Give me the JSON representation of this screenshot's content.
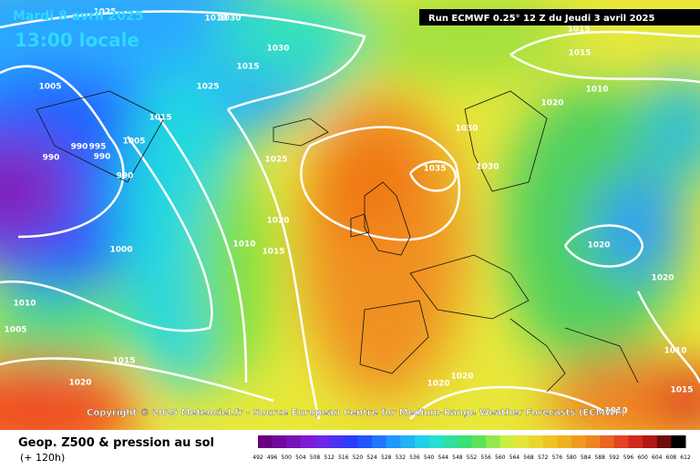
{
  "header": {
    "date": "Mardi 8 avril 2025",
    "time": "13:00 locale",
    "run": "Run ECMWF 0.25° 12 Z du Jeudi 3 avril 2025"
  },
  "copyright": "Copyright © 2025 Meteociel.fr - Source European Centre for Medium-Range Weather Forecasts (ECMWF)",
  "legend": {
    "title": "Geop. Z500 & pression au sol",
    "lead": "(+ 120h)",
    "scale": [
      "492",
      "496",
      "500",
      "504",
      "508",
      "512",
      "516",
      "520",
      "524",
      "528",
      "532",
      "536",
      "540",
      "544",
      "548",
      "552",
      "556",
      "560",
      "564",
      "568",
      "572",
      "576",
      "580",
      "584",
      "588",
      "592",
      "596",
      "600",
      "604",
      "608",
      "612"
    ]
  },
  "isobar_labels": [
    "1025",
    "1010",
    "1030",
    "1030",
    "1015",
    "1025",
    "1005",
    "1015",
    "1005",
    "990",
    "995",
    "990",
    "990",
    "990",
    "1025",
    "1020",
    "1010",
    "1015",
    "1000",
    "1010",
    "1005",
    "1015",
    "1020",
    "1030",
    "1035",
    "1030",
    "1015",
    "1015",
    "1010",
    "1020",
    "1020",
    "1020",
    "1010",
    "1015",
    "1020",
    "1020",
    "1010"
  ]
}
